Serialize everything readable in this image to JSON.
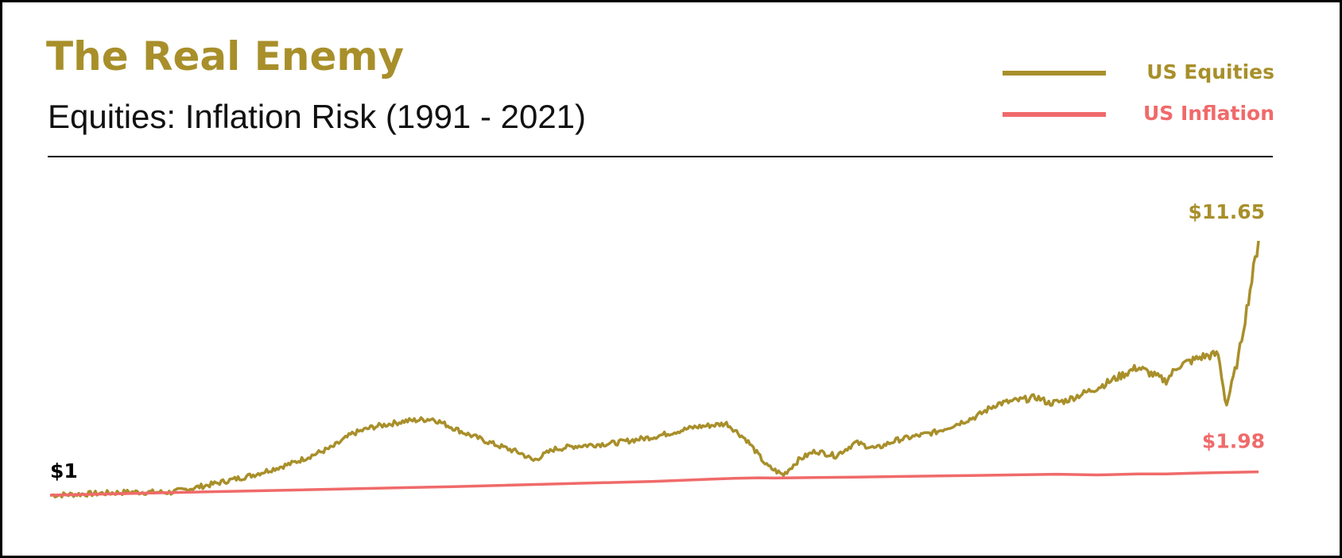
{
  "colors": {
    "equities": "#A88F2A",
    "inflation": "#F06A6A",
    "title": "#A88F2A",
    "start_label": "#000000"
  },
  "header": {
    "title": "The Real Enemy",
    "subtitle": "Equities: Inflation Risk (1991 - 2021)"
  },
  "chart_data": {
    "type": "line",
    "title": "The Real Enemy",
    "subtitle": "Equities: Inflation Risk (1991 - 2021)",
    "xlabel": "",
    "ylabel": "",
    "xlim": [
      1991,
      2021
    ],
    "ylim": [
      1,
      11.65
    ],
    "grid": false,
    "legend_position": "top-right",
    "annotations": [
      {
        "text": "$1",
        "series": "start",
        "x": 1991,
        "y": 1
      },
      {
        "text": "$11.65",
        "series": "US Equities",
        "x": 2021,
        "y": 11.65
      },
      {
        "text": "$1.98",
        "series": "US Inflation",
        "x": 2021,
        "y": 1.98
      }
    ],
    "series": [
      {
        "name": "US Equities",
        "color": "#A88F2A",
        "x": [
          1991.0,
          1992.0,
          1993.0,
          1994.0,
          1995.0,
          1996.0,
          1997.0,
          1998.0,
          1998.5,
          1999.0,
          1999.8,
          2000.5,
          2001.3,
          2002.0,
          2002.7,
          2003.0,
          2003.5,
          2004.0,
          2005.0,
          2006.0,
          2007.0,
          2007.8,
          2008.3,
          2008.8,
          2009.2,
          2009.6,
          2010.0,
          2010.5,
          2011.0,
          2011.5,
          2012.0,
          2013.0,
          2014.0,
          2014.5,
          2015.5,
          2015.8,
          2016.2,
          2017.0,
          2018.0,
          2018.7,
          2019.0,
          2019.6,
          2020.0,
          2020.2,
          2020.5,
          2021.0
        ],
        "y": [
          1.0,
          1.06,
          1.13,
          1.12,
          1.45,
          1.83,
          2.33,
          3.0,
          3.57,
          3.85,
          4.1,
          4.2,
          3.6,
          3.15,
          2.75,
          2.45,
          2.92,
          3.05,
          3.18,
          3.45,
          3.85,
          4.0,
          3.3,
          2.22,
          1.85,
          2.5,
          2.85,
          2.65,
          3.2,
          2.95,
          3.3,
          3.65,
          4.3,
          4.82,
          5.1,
          4.85,
          4.95,
          5.5,
          6.36,
          5.78,
          6.41,
          6.8,
          6.9,
          4.72,
          6.77,
          11.65
        ]
      },
      {
        "name": "US Inflation",
        "color": "#F06A6A",
        "x": [
          1991.0,
          1996.0,
          2001.0,
          2006.0,
          2008.0,
          2008.6,
          2009.0,
          2011.0,
          2014.0,
          2016.0,
          2017.0,
          2018.0,
          2018.7,
          2019.5,
          2021.0
        ],
        "y": [
          1.0,
          1.18,
          1.36,
          1.58,
          1.71,
          1.73,
          1.72,
          1.76,
          1.83,
          1.88,
          1.85,
          1.89,
          1.89,
          1.93,
          1.98
        ]
      }
    ]
  },
  "legend": {
    "items": [
      {
        "label": "US Equities",
        "color": "#A88F2A"
      },
      {
        "label": "US Inflation",
        "color": "#F06A6A"
      }
    ]
  }
}
